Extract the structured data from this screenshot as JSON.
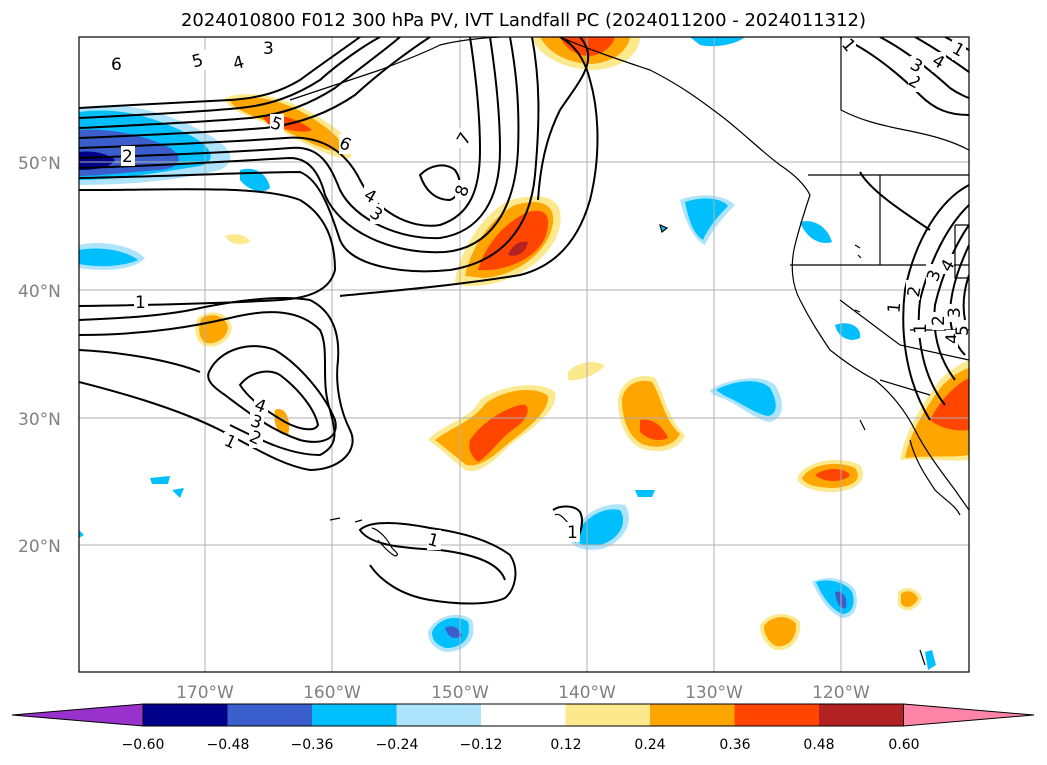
{
  "title": "2024010800 F012 300 hPa PV, IVT Landfall PC (2024011200 - 2024011312)",
  "map": {
    "lat_labels": [
      "50°N",
      "40°N",
      "30°N",
      "20°N"
    ],
    "lon_labels": [
      "170°W",
      "160°W",
      "150°W",
      "140°W",
      "130°W",
      "120°W"
    ],
    "grid": true
  },
  "contour_labels": [
    "6",
    "5",
    "4",
    "3",
    "2",
    "1",
    "5",
    "6",
    "4",
    "3",
    "7",
    "8",
    "1",
    "4",
    "3",
    "2",
    "1",
    "1",
    "1",
    "1",
    "2",
    "3",
    "4",
    "2",
    "3",
    "4",
    "1",
    "1",
    "2",
    "3",
    "4",
    "5"
  ],
  "colorbar": {
    "ticks": [
      "−0.60",
      "−0.48",
      "−0.36",
      "−0.24",
      "−0.12",
      "0.12",
      "0.24",
      "0.36",
      "0.48",
      "0.60"
    ],
    "colors": [
      "#9932cc",
      "#00008b",
      "#3a5fcd",
      "#00bfff",
      "#aee4fb",
      "#ffffff",
      "#fce98e",
      "#ffa500",
      "#ff4500",
      "#b22222",
      "#ff85a8"
    ],
    "extend": "both"
  }
}
